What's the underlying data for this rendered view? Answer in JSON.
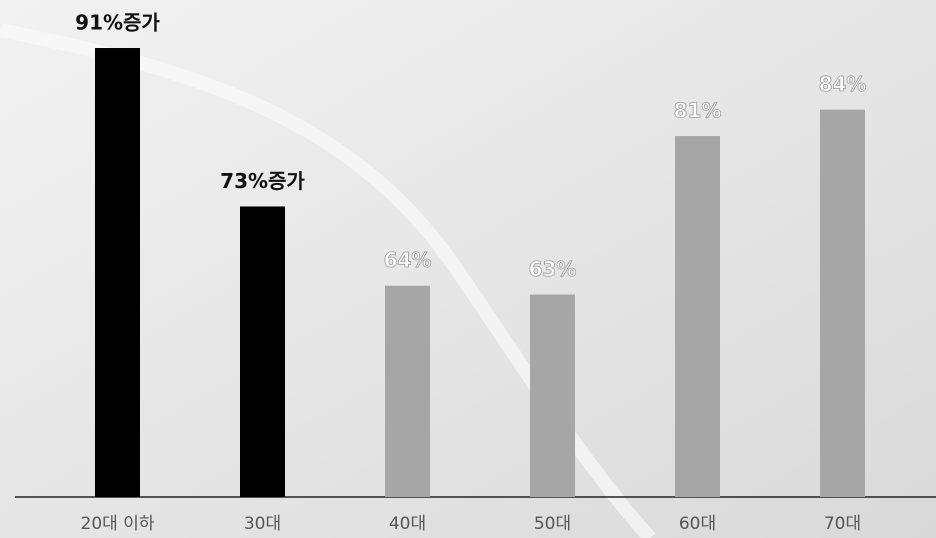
{
  "chart_data": {
    "type": "bar",
    "categories": [
      "20대 이하",
      "30대",
      "40대",
      "50대",
      "60대",
      "70대"
    ],
    "values": [
      91,
      73,
      64,
      63,
      81,
      84
    ],
    "value_labels": [
      "91%증가",
      "73%증가",
      "64%",
      "63%",
      "81%",
      "84%"
    ],
    "colors": [
      "#000000",
      "#000000",
      "#a6a6a6",
      "#a6a6a6",
      "#a6a6a6",
      "#a6a6a6"
    ],
    "ylim": [
      40,
      96
    ]
  }
}
